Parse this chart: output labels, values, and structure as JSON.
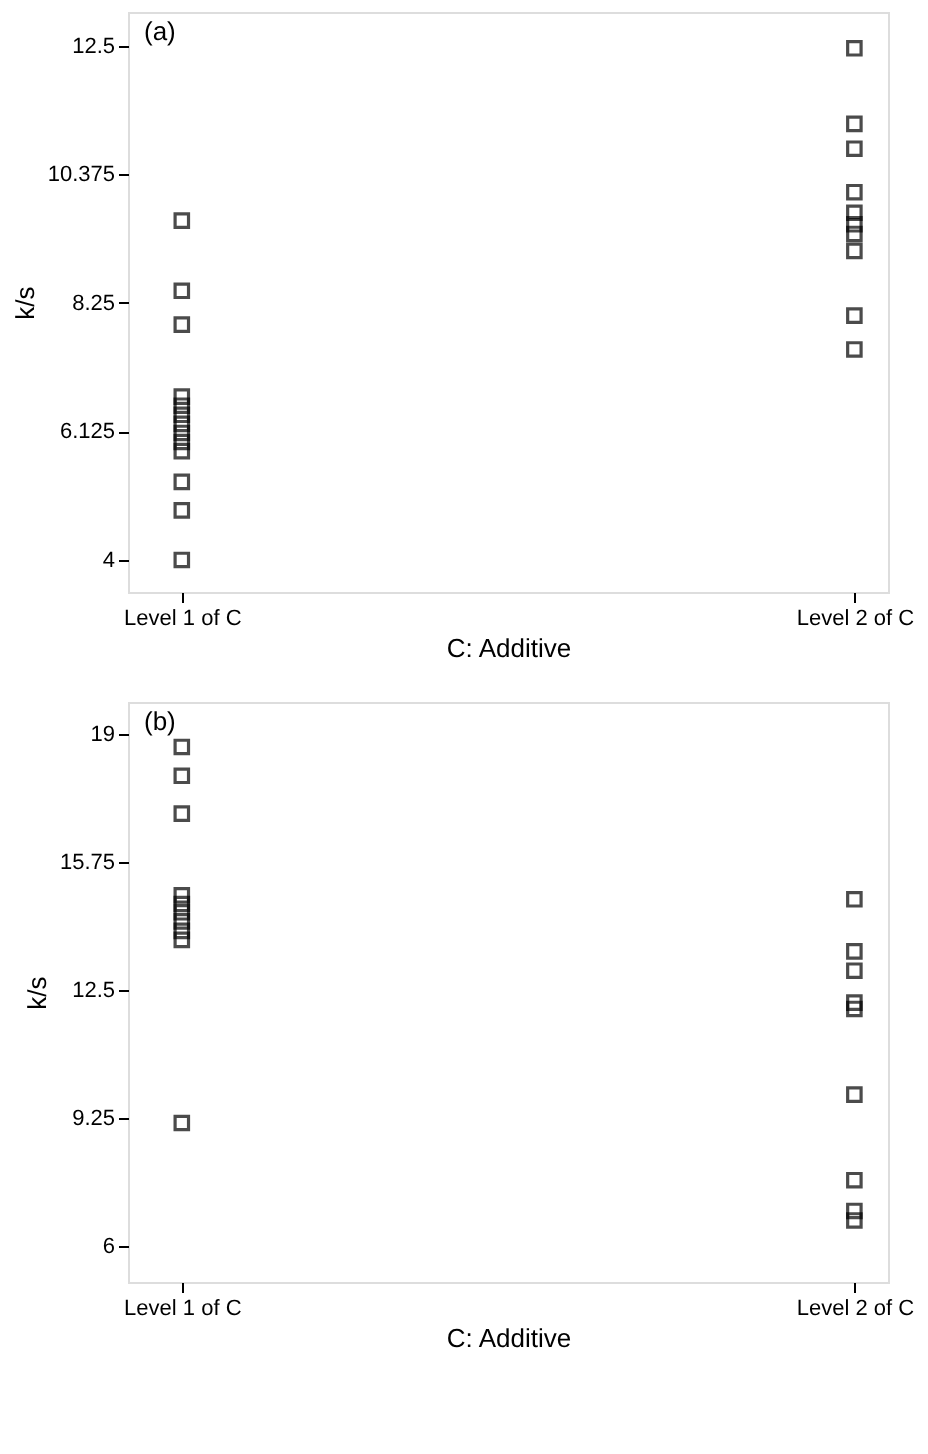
{
  "chart_data": [
    {
      "type": "scatter",
      "categories": [
        "Level 1 of C",
        "Level 2 of C"
      ],
      "xlabel": "C: Additive",
      "ylabel": "k/s",
      "annotations": [
        "(a)"
      ],
      "ylim": [
        3.47,
        13.06
      ],
      "yticks": [
        4,
        6.125,
        8.25,
        10.375,
        12.5
      ],
      "marker": "square",
      "grid": false,
      "series": [
        {
          "color": "#000000",
          "x": [
            "Level 1 of C",
            "Level 1 of C",
            "Level 1 of C",
            "Level 1 of C",
            "Level 1 of C",
            "Level 1 of C",
            "Level 1 of C",
            "Level 1 of C",
            "Level 1 of C",
            "Level 1 of C",
            "Level 1 of C",
            "Level 1 of C",
            "Level 1 of C",
            "Level 2 of C",
            "Level 2 of C",
            "Level 2 of C",
            "Level 2 of C",
            "Level 2 of C",
            "Level 2 of C",
            "Level 2 of C",
            "Level 2 of C",
            "Level 2 of C",
            "Level 2 of C"
          ],
          "values": [
            9.61,
            8.45,
            7.89,
            6.7,
            6.55,
            6.4,
            6.25,
            6.1,
            5.95,
            5.8,
            5.29,
            4.82,
            4.0,
            12.46,
            11.21,
            10.8,
            10.08,
            9.74,
            9.55,
            9.39,
            9.11,
            8.04,
            7.48
          ]
        }
      ]
    },
    {
      "type": "scatter",
      "categories": [
        "Level 1 of C",
        "Level 2 of C"
      ],
      "xlabel": "C: Additive",
      "ylabel": "k/s",
      "annotations": [
        "(b)"
      ],
      "ylim": [
        5.1,
        19.8
      ],
      "yticks": [
        6,
        9.25,
        12.5,
        15.75,
        19
      ],
      "marker": "square",
      "grid": false,
      "series": [
        {
          "color": "#000000",
          "x": [
            "Level 1 of C",
            "Level 1 of C",
            "Level 1 of C",
            "Level 1 of C",
            "Level 1 of C",
            "Level 1 of C",
            "Level 1 of C",
            "Level 1 of C",
            "Level 1 of C",
            "Level 1 of C",
            "Level 2 of C",
            "Level 2 of C",
            "Level 2 of C",
            "Level 2 of C",
            "Level 2 of C",
            "Level 2 of C",
            "Level 2 of C",
            "Level 2 of C",
            "Level 2 of C"
          ],
          "values": [
            18.66,
            17.93,
            16.97,
            14.9,
            14.68,
            14.47,
            14.24,
            14.0,
            13.77,
            9.13,
            14.8,
            13.48,
            12.99,
            12.18,
            12.02,
            9.85,
            7.68,
            6.9,
            6.66
          ]
        }
      ]
    }
  ]
}
